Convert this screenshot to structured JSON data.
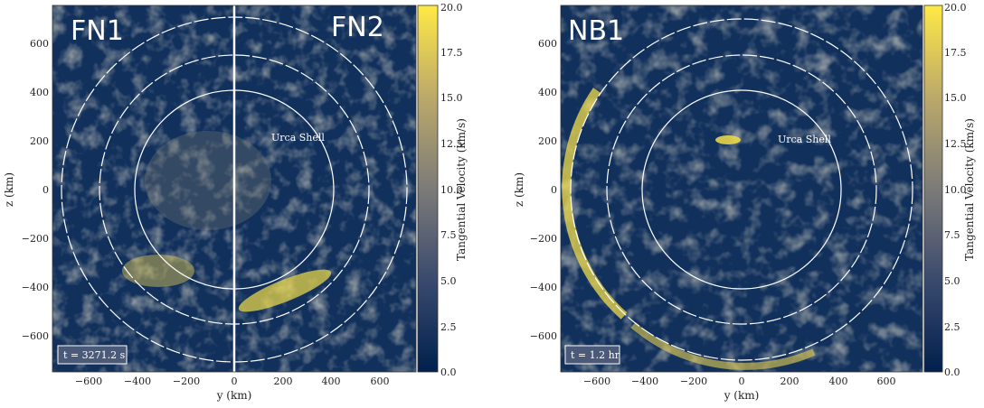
{
  "panels": [
    {
      "labels": [
        "FN1",
        "FN2"
      ],
      "shell_label": "Urca Shell",
      "time_label": "t = 3271.2 s",
      "xlabel": "y  (km)",
      "ylabel": "z  (km)",
      "xticks": [
        "−600",
        "−400",
        "−200",
        "0",
        "200",
        "400",
        "600"
      ],
      "yticks": [
        "600",
        "400",
        "200",
        "0",
        "−200",
        "−400",
        "−600"
      ],
      "cbar_label": "Tangential Velocity  (km/s)",
      "cbar_ticks": [
        "20.0",
        "17.5",
        "15.0",
        "12.5",
        "10.0",
        "7.5",
        "5.0",
        "2.5",
        "0.0"
      ]
    },
    {
      "labels": [
        "NB1"
      ],
      "shell_label": "Urca Shell",
      "time_label": "t = 1.2 hr",
      "xlabel": "y  (km)",
      "ylabel": "z  (km)",
      "xticks": [
        "−600",
        "−400",
        "−200",
        "0",
        "200",
        "400",
        "600"
      ],
      "yticks": [
        "600",
        "400",
        "200",
        "0",
        "−200",
        "−400",
        "−600"
      ],
      "cbar_label": "Tangential Velocity  (km/s)",
      "cbar_ticks": [
        "20.0",
        "17.5",
        "15.0",
        "12.5",
        "10.0",
        "7.5",
        "5.0",
        "2.5",
        "0.0"
      ]
    }
  ],
  "colors": {
    "low": "#0d2a5a",
    "mid": "#7d7d78",
    "high": "#f9e33e"
  }
}
